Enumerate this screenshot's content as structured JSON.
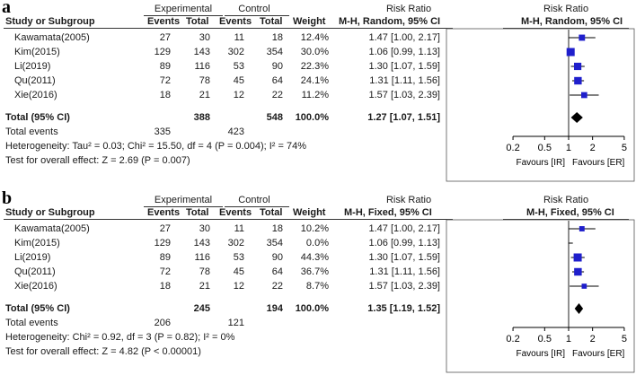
{
  "chart_data": [
    {
      "type": "forest",
      "panel_label": "a",
      "title": "",
      "group_header_experimental": "Experimental",
      "group_header_control": "Control",
      "headers": {
        "study": "Study or Subgroup",
        "events1": "Events",
        "total1": "Total",
        "events2": "Events",
        "total2": "Total",
        "weight": "Weight",
        "rr_title": "Risk Ratio",
        "rr_method": "M-H, Random, 95% CI",
        "plot_title": "Risk Ratio",
        "plot_method": "M-H, Random, 95% CI"
      },
      "studies": [
        {
          "name": "Kawamata(2005)",
          "events1": "27",
          "total1": "30",
          "events2": "11",
          "total2": "18",
          "weight": "12.4%",
          "ci_text": "1.47 [1.00, 2.17]",
          "rr": 1.47,
          "lo": 1.0,
          "hi": 2.17,
          "w": 12.4
        },
        {
          "name": "Kim(2015)",
          "events1": "129",
          "total1": "143",
          "events2": "302",
          "total2": "354",
          "weight": "30.0%",
          "ci_text": "1.06 [0.99, 1.13]",
          "rr": 1.06,
          "lo": 0.99,
          "hi": 1.13,
          "w": 30.0
        },
        {
          "name": "Li(2019)",
          "events1": "89",
          "total1": "116",
          "events2": "53",
          "total2": "90",
          "weight": "22.3%",
          "ci_text": "1.30 [1.07, 1.59]",
          "rr": 1.3,
          "lo": 1.07,
          "hi": 1.59,
          "w": 22.3
        },
        {
          "name": "Qu(2011)",
          "events1": "72",
          "total1": "78",
          "events2": "45",
          "total2": "64",
          "weight": "24.1%",
          "ci_text": "1.31 [1.11, 1.56]",
          "rr": 1.31,
          "lo": 1.11,
          "hi": 1.56,
          "w": 24.1
        },
        {
          "name": "Xie(2016)",
          "events1": "18",
          "total1": "21",
          "events2": "12",
          "total2": "22",
          "weight": "11.2%",
          "ci_text": "1.57 [1.03, 2.39]",
          "rr": 1.57,
          "lo": 1.03,
          "hi": 2.39,
          "w": 11.2
        }
      ],
      "total": {
        "label": "Total (95% CI)",
        "total1": "388",
        "total2": "548",
        "weight": "100.0%",
        "ci_text": "1.27 [1.07, 1.51]",
        "rr": 1.27,
        "lo": 1.07,
        "hi": 1.51
      },
      "total_events": {
        "label": "Total events",
        "events1": "335",
        "events2": "423"
      },
      "heterogeneity": "Heterogeneity: Tau² = 0.03; Chi² = 15.50, df = 4 (P = 0.004); I² = 74%",
      "overall_effect": "Test for overall effect: Z = 2.69 (P = 0.007)",
      "axis": {
        "scale": "log",
        "xlim": [
          0.15,
          6.5
        ],
        "ticks": [
          0.2,
          0.5,
          1,
          2,
          5
        ],
        "tick_labels": [
          "0.2",
          "0.5",
          "1",
          "2",
          "5"
        ]
      },
      "favours_left": "Favours [IR]",
      "favours_right": "Favours [ER]",
      "color": "#1f1fcc"
    },
    {
      "type": "forest",
      "panel_label": "b",
      "title": "",
      "group_header_experimental": "Experimental",
      "group_header_control": "Control",
      "headers": {
        "study": "Study or Subgroup",
        "events1": "Events",
        "total1": "Total",
        "events2": "Events",
        "total2": "Total",
        "weight": "Weight",
        "rr_title": "Risk Ratio",
        "rr_method": "M-H, Fixed, 95% CI",
        "plot_title": "Risk Ratio",
        "plot_method": "M-H, Fixed, 95% CI"
      },
      "studies": [
        {
          "name": "Kawamata(2005)",
          "events1": "27",
          "total1": "30",
          "events2": "11",
          "total2": "18",
          "weight": "10.2%",
          "ci_text": "1.47 [1.00, 2.17]",
          "rr": 1.47,
          "lo": 1.0,
          "hi": 2.17,
          "w": 10.2
        },
        {
          "name": "Kim(2015)",
          "events1": "129",
          "total1": "143",
          "events2": "302",
          "total2": "354",
          "weight": "0.0%",
          "ci_text": "1.06 [0.99, 1.13]",
          "rr": 1.06,
          "lo": 0.99,
          "hi": 1.13,
          "w": 0.0
        },
        {
          "name": "Li(2019)",
          "events1": "89",
          "total1": "116",
          "events2": "53",
          "total2": "90",
          "weight": "44.3%",
          "ci_text": "1.30 [1.07, 1.59]",
          "rr": 1.3,
          "lo": 1.07,
          "hi": 1.59,
          "w": 44.3
        },
        {
          "name": "Qu(2011)",
          "events1": "72",
          "total1": "78",
          "events2": "45",
          "total2": "64",
          "weight": "36.7%",
          "ci_text": "1.31 [1.11, 1.56]",
          "rr": 1.31,
          "lo": 1.11,
          "hi": 1.56,
          "w": 36.7
        },
        {
          "name": "Xie(2016)",
          "events1": "18",
          "total1": "21",
          "events2": "12",
          "total2": "22",
          "weight": "8.7%",
          "ci_text": "1.57 [1.03, 2.39]",
          "rr": 1.57,
          "lo": 1.03,
          "hi": 2.39,
          "w": 8.7
        }
      ],
      "total": {
        "label": "Total (95% CI)",
        "total1": "245",
        "total2": "194",
        "weight": "100.0%",
        "ci_text": "1.35 [1.19, 1.52]",
        "rr": 1.35,
        "lo": 1.19,
        "hi": 1.52
      },
      "total_events": {
        "label": "Total events",
        "events1": "206",
        "events2": "121"
      },
      "heterogeneity": "Heterogeneity: Chi² = 0.92, df = 3 (P = 0.82); I² = 0%",
      "overall_effect": "Test for overall effect: Z = 4.82 (P < 0.00001)",
      "axis": {
        "scale": "log",
        "xlim": [
          0.15,
          6.5
        ],
        "ticks": [
          0.2,
          0.5,
          1,
          2,
          5
        ],
        "tick_labels": [
          "0.2",
          "0.5",
          "1",
          "2",
          "5"
        ]
      },
      "favours_left": "Favours [IR]",
      "favours_right": "Favours [ER]",
      "color": "#1f1fcc"
    }
  ]
}
